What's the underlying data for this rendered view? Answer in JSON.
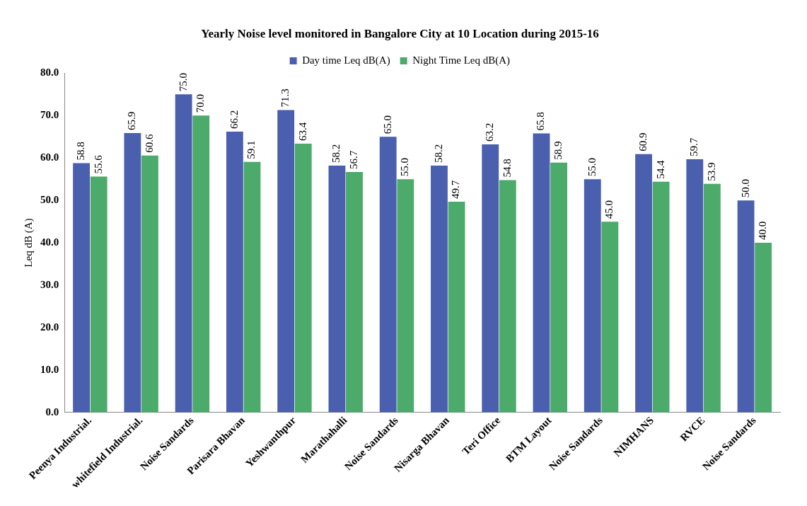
{
  "chart_data": {
    "type": "bar",
    "title": "Yearly Noise level monitored in Bangalore City at 10 Location during 2015-16",
    "ylabel": "Leq dB (A)",
    "categories": [
      "Peenya Industrial.",
      "whitefield Industrial.",
      "Noise Sandards",
      "Parisara Bhavan",
      "Yeshwanthpur",
      "Marathahalli",
      "Noise Sandards",
      "Nisarga Bhavan",
      "Teri Office",
      "BTM Layout",
      "Noise Sandards",
      "NIMHANS",
      "RVCE",
      "Noise Sandards"
    ],
    "series": [
      {
        "name": "Day time Leq dB(A)",
        "color": "#4a5fad",
        "values": [
          58.8,
          65.9,
          75.0,
          66.2,
          71.3,
          58.2,
          65.0,
          58.2,
          63.2,
          65.8,
          55.0,
          60.9,
          59.7,
          50.0
        ],
        "value_labels": [
          "58.8",
          "65.9",
          "75.0",
          "66.2",
          "71.3",
          "58.2",
          "65.0",
          "58.2",
          "63.2",
          "65.8",
          "55.0",
          "60.9",
          "59.7",
          "50.0"
        ]
      },
      {
        "name": "Night Time Leq dB(A)",
        "color": "#4caa6a",
        "values": [
          55.6,
          60.6,
          70.0,
          59.1,
          63.4,
          56.7,
          55.0,
          49.7,
          54.8,
          58.9,
          45.0,
          54.4,
          53.9,
          40.0
        ],
        "value_labels": [
          "55.6",
          "60.6",
          "70.0",
          "59.1",
          "63.4",
          "56.7",
          "55.0",
          "49.7",
          "54.8",
          "58.9",
          "45.0",
          "54.4",
          "53.9",
          "40.0"
        ]
      }
    ],
    "ylim": [
      0,
      80
    ],
    "yticks": [
      {
        "value": 0,
        "label": "0.0"
      },
      {
        "value": 10,
        "label": "10.0"
      },
      {
        "value": 20,
        "label": "20.0"
      },
      {
        "value": 30,
        "label": "30.0"
      },
      {
        "value": 40,
        "label": "40.0"
      },
      {
        "value": 50,
        "label": "50.0"
      },
      {
        "value": 60,
        "label": "60.0"
      },
      {
        "value": 70,
        "label": "70.0"
      },
      {
        "value": 80,
        "label": "80.0"
      }
    ],
    "legend": "top",
    "grid": false
  }
}
